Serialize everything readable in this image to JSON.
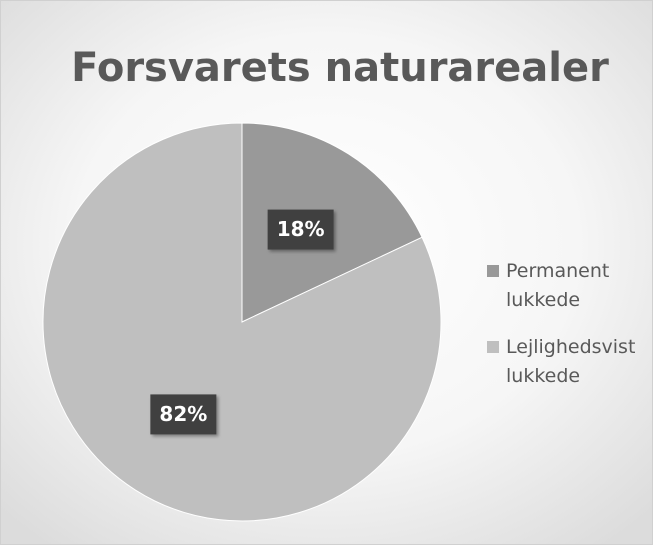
{
  "chart_data": {
    "type": "pie",
    "title": "Forsvarets naturarealer",
    "categories": [
      "Permanent lukkede",
      "Lejlighedsvist lukkede"
    ],
    "values": [
      18,
      82
    ],
    "value_labels": [
      "18%",
      "82%"
    ],
    "colors": [
      "#999999",
      "#bfbfbf"
    ],
    "legend": "right"
  }
}
